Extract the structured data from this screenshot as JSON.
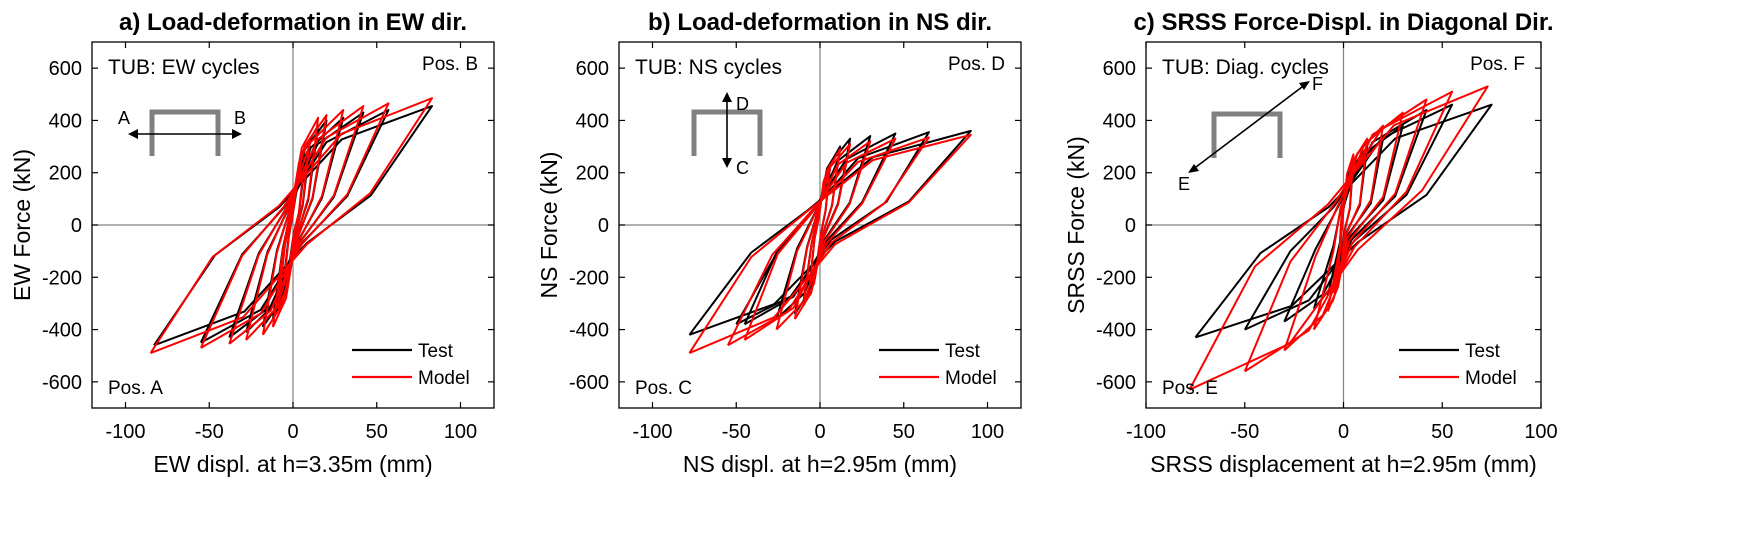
{
  "colors": {
    "test": "#000000",
    "model": "#ff0000",
    "zero_line": "#808080",
    "section": "#808080"
  },
  "chart_data": [
    {
      "type": "line",
      "title": "a) Load-deformation in EW dir.",
      "xlabel": "EW displ. at h=3.35m (mm)",
      "ylabel": "EW Force (kN)",
      "xlim": [
        -120,
        120
      ],
      "ylim": [
        -700,
        700
      ],
      "xticks": [
        -100,
        -50,
        0,
        50,
        100
      ],
      "yticks": [
        -600,
        -400,
        -200,
        0,
        200,
        400,
        600
      ],
      "annotation": "TUB: EW cycles",
      "corner_labels": {
        "top_right": "Pos. B",
        "bottom_left": "Pos. A"
      },
      "direction_icon": {
        "type": "ew",
        "labels": [
          "A",
          "B"
        ]
      },
      "legend": {
        "position": "bottom-right",
        "entries": [
          "Test",
          "Model"
        ]
      },
      "series": [
        {
          "name": "Test",
          "color": "#000000",
          "cycles": [
            {
              "xmax": 6,
              "fmax": 180,
              "xmin": -5,
              "fmin": -180
            },
            {
              "xmax": 10,
              "fmax": 300,
              "xmin": -9,
              "fmin": -300
            },
            {
              "xmax": 15,
              "fmax": 380,
              "xmin": -12,
              "fmin": -360
            },
            {
              "xmax": 20,
              "fmax": 400,
              "xmin": -18,
              "fmin": -390
            },
            {
              "xmax": 30,
              "fmax": 410,
              "xmin": -28,
              "fmin": -410
            },
            {
              "xmax": 42,
              "fmax": 430,
              "xmin": -38,
              "fmin": -430
            },
            {
              "xmax": 57,
              "fmax": 440,
              "xmin": -55,
              "fmin": -450
            },
            {
              "xmax": 83,
              "fmax": 455,
              "xmin": -83,
              "fmin": -460
            }
          ]
        },
        {
          "name": "Model",
          "color": "#ff0000",
          "cycles": [
            {
              "xmax": 6,
              "fmax": 200,
              "xmin": -5,
              "fmin": -200
            },
            {
              "xmax": 10,
              "fmax": 330,
              "xmin": -9,
              "fmin": -320
            },
            {
              "xmax": 15,
              "fmax": 410,
              "xmin": -12,
              "fmin": -390
            },
            {
              "xmax": 20,
              "fmax": 420,
              "xmin": -18,
              "fmin": -420
            },
            {
              "xmax": 30,
              "fmax": 440,
              "xmin": -28,
              "fmin": -440
            },
            {
              "xmax": 42,
              "fmax": 455,
              "xmin": -38,
              "fmin": -455
            },
            {
              "xmax": 57,
              "fmax": 465,
              "xmin": -55,
              "fmin": -470
            },
            {
              "xmax": 83,
              "fmax": 485,
              "xmin": -85,
              "fmin": -490
            }
          ]
        }
      ]
    },
    {
      "type": "line",
      "title": "b) Load-deformation in NS dir.",
      "xlabel": "NS displ. at h=2.95m (mm)",
      "ylabel": "NS Force (kN)",
      "xlim": [
        -120,
        120
      ],
      "ylim": [
        -700,
        700
      ],
      "xticks": [
        -100,
        -50,
        0,
        50,
        100
      ],
      "yticks": [
        -600,
        -400,
        -200,
        0,
        200,
        400,
        600
      ],
      "annotation": "TUB: NS cycles",
      "corner_labels": {
        "top_right": "Pos. D",
        "bottom_left": "Pos. C"
      },
      "direction_icon": {
        "type": "ns",
        "labels": [
          "D",
          "C"
        ]
      },
      "legend": {
        "position": "bottom-right",
        "entries": [
          "Test",
          "Model"
        ]
      },
      "series": [
        {
          "name": "Test",
          "color": "#000000",
          "cycles": [
            {
              "xmax": 6,
              "fmax": 220,
              "xmin": -6,
              "fmin": -220
            },
            {
              "xmax": 12,
              "fmax": 300,
              "xmin": -10,
              "fmin": -300
            },
            {
              "xmax": 18,
              "fmax": 330,
              "xmin": -15,
              "fmin": -340
            },
            {
              "xmax": 30,
              "fmax": 340,
              "xmin": -26,
              "fmin": -360
            },
            {
              "xmax": 45,
              "fmax": 350,
              "xmin": -45,
              "fmin": -380
            },
            {
              "xmax": 65,
              "fmax": 355,
              "xmin": -50,
              "fmin": -380
            },
            {
              "xmax": 90,
              "fmax": 360,
              "xmin": -78,
              "fmin": -420
            }
          ]
        },
        {
          "name": "Model",
          "color": "#ff0000",
          "cycles": [
            {
              "xmax": 6,
              "fmax": 230,
              "xmin": -6,
              "fmin": -230
            },
            {
              "xmax": 12,
              "fmax": 290,
              "xmin": -10,
              "fmin": -310
            },
            {
              "xmax": 18,
              "fmax": 310,
              "xmin": -15,
              "fmin": -360
            },
            {
              "xmax": 30,
              "fmax": 320,
              "xmin": -26,
              "fmin": -400
            },
            {
              "xmax": 45,
              "fmax": 330,
              "xmin": -45,
              "fmin": -440
            },
            {
              "xmax": 65,
              "fmax": 335,
              "xmin": -55,
              "fmin": -460
            },
            {
              "xmax": 90,
              "fmax": 345,
              "xmin": -78,
              "fmin": -490
            }
          ]
        }
      ]
    },
    {
      "type": "line",
      "title": "c) SRSS Force-Displ. in Diagonal Dir.",
      "xlabel": "SRSS displacement at h=2.95m (mm)",
      "ylabel": "SRSS Force (kN)",
      "xlim": [
        -100,
        100
      ],
      "ylim": [
        -700,
        700
      ],
      "xticks": [
        -100,
        -50,
        0,
        50,
        100
      ],
      "yticks": [
        -600,
        -400,
        -200,
        0,
        200,
        400,
        600
      ],
      "annotation": "TUB: Diag. cycles",
      "corner_labels": {
        "top_right": "Pos. F",
        "bottom_left": "Pos. E"
      },
      "direction_icon": {
        "type": "diag",
        "labels": [
          "F",
          "E"
        ]
      },
      "legend": {
        "position": "bottom-right",
        "entries": [
          "Test",
          "Model"
        ]
      },
      "series": [
        {
          "name": "Test",
          "color": "#000000",
          "cycles": [
            {
              "xmax": 5,
              "fmax": 250,
              "xmin": -3,
              "fmin": -150
            },
            {
              "xmax": 12,
              "fmax": 300,
              "xmin": -5,
              "fmin": -220
            },
            {
              "xmax": 20,
              "fmax": 330,
              "xmin": -8,
              "fmin": -270
            },
            {
              "xmax": 30,
              "fmax": 380,
              "xmin": -15,
              "fmin": -320
            },
            {
              "xmax": 42,
              "fmax": 440,
              "xmin": -30,
              "fmin": -370
            },
            {
              "xmax": 55,
              "fmax": 460,
              "xmin": -50,
              "fmin": -400
            },
            {
              "xmax": 75,
              "fmax": 460,
              "xmin": -75,
              "fmin": -430
            }
          ]
        },
        {
          "name": "Model",
          "color": "#ff0000",
          "cycles": [
            {
              "xmax": 5,
              "fmax": 270,
              "xmin": -3,
              "fmin": -200
            },
            {
              "xmax": 12,
              "fmax": 330,
              "xmin": -5,
              "fmin": -260
            },
            {
              "xmax": 20,
              "fmax": 380,
              "xmin": -8,
              "fmin": -330
            },
            {
              "xmax": 30,
              "fmax": 430,
              "xmin": -15,
              "fmin": -400
            },
            {
              "xmax": 42,
              "fmax": 480,
              "xmin": -30,
              "fmin": -480
            },
            {
              "xmax": 55,
              "fmax": 510,
              "xmin": -50,
              "fmin": -560
            },
            {
              "xmax": 73,
              "fmax": 530,
              "xmin": -78,
              "fmin": -630
            }
          ]
        }
      ]
    }
  ]
}
